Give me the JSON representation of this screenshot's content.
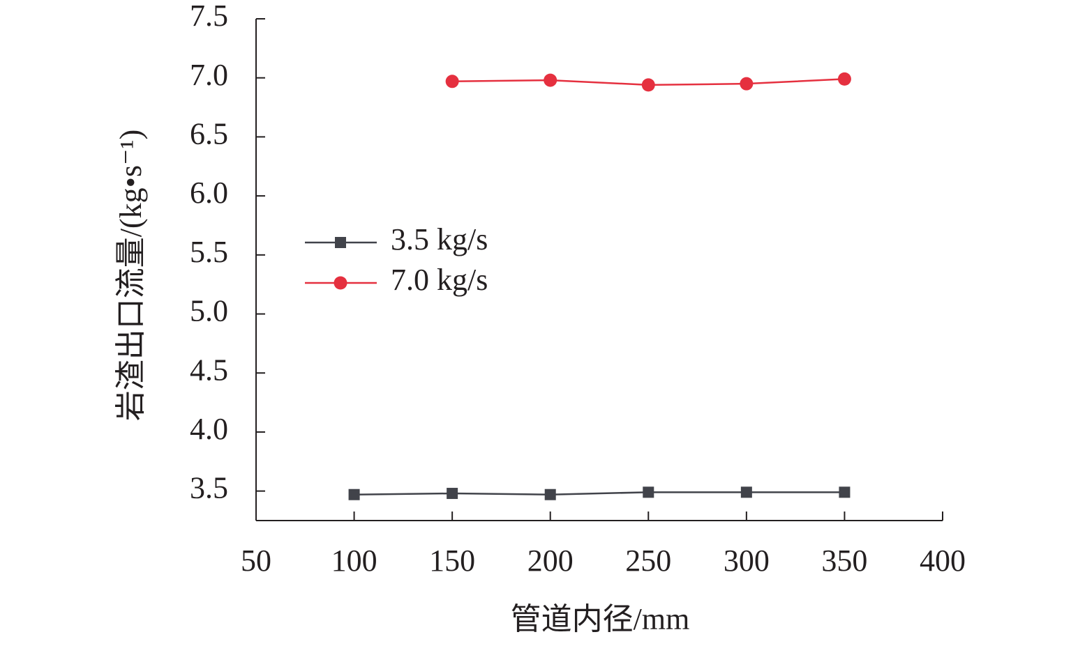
{
  "chart_data": {
    "type": "line",
    "x_label": "管道内径/mm",
    "y_label": "岩渣出口流量/(kg•s⁻¹)",
    "xlim": [
      50,
      400
    ],
    "xticks": [
      50,
      100,
      150,
      200,
      250,
      300,
      350,
      400
    ],
    "ylim": [
      3.25,
      7.5
    ],
    "yticks": [
      3.5,
      {
        "value": 4,
        "label": "4.0"
      },
      4.5,
      {
        "value": 5,
        "label": "5.0"
      },
      5.5,
      {
        "value": 6,
        "label": "6.0"
      },
      6.5,
      {
        "value": 7,
        "label": "7.0"
      },
      7.5
    ],
    "legend": "upper-left",
    "series": [
      {
        "name": "3.5 kg/s",
        "color": "#41434a",
        "marker": "square",
        "x": [
          100,
          150,
          200,
          250,
          300,
          350
        ],
        "values": [
          3.47,
          3.48,
          3.47,
          3.49,
          3.49,
          3.49
        ]
      },
      {
        "name": "7.0 kg/s",
        "color": "#e5303f",
        "marker": "circle",
        "x": [
          150,
          200,
          250,
          300,
          350
        ],
        "values": [
          6.97,
          6.98,
          6.94,
          6.95,
          6.99
        ]
      }
    ]
  }
}
